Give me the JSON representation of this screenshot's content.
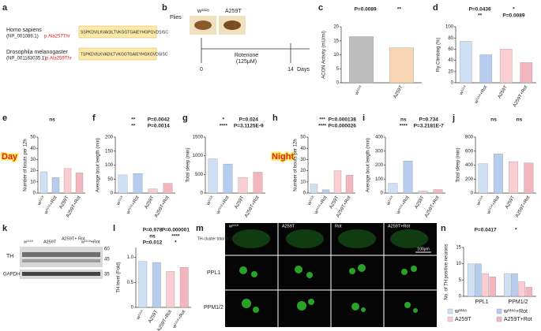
{
  "panels": {
    "a": {
      "label": "a",
      "rows": [
        {
          "species": "Homo sapiens",
          "id": "(NP_001089.1)",
          "mutation": "p.Ala257Thr",
          "sequence": "SSPKDVILKVAGILTVKGGTGAIEYHGPGVDSISC"
        },
        {
          "species": "Drosophila melanogaster",
          "id": "(NP_001163035.1)",
          "mutation": "p.Ala259Thr",
          "sequence": "TSPKDVILKVADILTVKGGTGAIEYHGKGVDSISC"
        }
      ]
    },
    "b": {
      "label": "b",
      "title": "Flies",
      "genotypes": [
        "w¹¹¹⁸",
        "A259T"
      ],
      "treatment": "Rotenone",
      "dose": "(125μM)",
      "start": "0",
      "end": "14",
      "unit": "Days"
    },
    "k": {
      "label": "k",
      "lanes": [
        "w¹¹¹⁸",
        "A259T",
        "A259T+ Rot",
        "w¹¹¹⁸+Rot"
      ],
      "proteins": [
        "TH",
        "GAPDH"
      ],
      "markers": [
        "60",
        "45",
        "35"
      ]
    },
    "m": {
      "label": "m",
      "columns": [
        "w¹¹¹⁸",
        "A259T",
        "Rot",
        "A259T+Rot"
      ],
      "rows": [
        "TH-cluster total fly brain",
        "PPL1",
        "PPM1/2"
      ],
      "scale": "100μm"
    }
  },
  "chart_data": [
    {
      "type": "bar",
      "label": "c",
      "ylabel": "ACON Activity (mU/ml)",
      "categories": [
        "w¹¹¹⁸",
        "A259T"
      ],
      "values": [
        16.5,
        12.5
      ],
      "colors": [
        "#bdbdbd",
        "#f8d6b3"
      ],
      "ylim": [
        0,
        20
      ],
      "yticks": [
        0,
        5,
        10,
        15,
        20
      ],
      "annotations": [
        "P=0.0089",
        "**"
      ]
    },
    {
      "type": "bar",
      "label": "d",
      "ylabel": "Fly Climbing (%)",
      "categories": [
        "w¹¹¹⁸",
        "w¹¹¹⁸+Rot",
        "A259T",
        "A259T+Rot"
      ],
      "values": [
        74,
        50,
        60,
        36
      ],
      "colors": [
        "#cfe0f5",
        "#b7cdef",
        "#f9cdd2",
        "#f4b6be"
      ],
      "ylim": [
        0,
        100
      ],
      "yticks": [
        0,
        20,
        40,
        60,
        80,
        100
      ],
      "annotations": [
        "P=0.0436",
        "*",
        "**",
        "P=0.0089"
      ]
    },
    {
      "type": "bar",
      "label": "e",
      "tag": "Day",
      "ylabel": "Number of bouts per 12h",
      "categories": [
        "w¹¹¹⁸",
        "w¹¹¹⁸+Rot",
        "A259T",
        "A259T+Rot"
      ],
      "values": [
        19,
        14,
        22,
        18
      ],
      "colors": [
        "#cfe0f5",
        "#b7cdef",
        "#f9cdd2",
        "#f4b6be"
      ],
      "ylim": [
        0,
        50
      ],
      "yticks": [
        0,
        10,
        20,
        30,
        40,
        50
      ],
      "annotations": [
        "ns"
      ]
    },
    {
      "type": "bar",
      "label": "f",
      "ylabel": "Average bout length (min)",
      "categories": [
        "w¹¹¹⁸",
        "w¹¹¹⁸+Rot",
        "A259T",
        "A259T+Rot"
      ],
      "values": [
        65,
        70,
        15,
        35
      ],
      "colors": [
        "#cfe0f5",
        "#b7cdef",
        "#f9cdd2",
        "#f4b6be"
      ],
      "ylim": [
        0,
        200
      ],
      "yticks": [
        0,
        50,
        100,
        150,
        200
      ],
      "annotations": [
        "**",
        "P=0.0042",
        "**",
        "P=0.0014"
      ]
    },
    {
      "type": "bar",
      "label": "g",
      "ylabel": "Total sleep (min)",
      "categories": [
        "w¹¹¹⁸",
        "w¹¹¹⁸+Rot",
        "A259T",
        "A259T+Rot"
      ],
      "values": [
        920,
        780,
        420,
        560
      ],
      "colors": [
        "#cfe0f5",
        "#b7cdef",
        "#f9cdd2",
        "#f4b6be"
      ],
      "ylim": [
        0,
        1500
      ],
      "yticks": [
        0,
        500,
        1000,
        1500
      ],
      "annotations": [
        "*",
        "P=0.024",
        "****",
        "P=3.1125E-9"
      ]
    },
    {
      "type": "bar",
      "label": "h",
      "tag": "Night",
      "ylabel": "Number of bouts per 12h",
      "categories": [
        "w¹¹¹⁸",
        "w¹¹¹⁸+Rot",
        "A259T",
        "A259T+Rot"
      ],
      "values": [
        8,
        3,
        20,
        16
      ],
      "colors": [
        "#cfe0f5",
        "#b7cdef",
        "#f9cdd2",
        "#f4b6be"
      ],
      "ylim": [
        0,
        50
      ],
      "yticks": [
        0,
        10,
        20,
        30,
        40,
        50
      ],
      "annotations": [
        "***",
        "P=0.000138",
        "****",
        "P=0.000026"
      ]
    },
    {
      "type": "bar",
      "label": "i",
      "ylabel": "Average bout length (min)",
      "categories": [
        "w¹¹¹⁸",
        "w¹¹¹⁸+Rot",
        "A259T",
        "A259T+Rot"
      ],
      "values": [
        70,
        230,
        15,
        25
      ],
      "colors": [
        "#cfe0f5",
        "#b7cdef",
        "#f9cdd2",
        "#f4b6be"
      ],
      "ylim": [
        0,
        400
      ],
      "yticks": [
        0,
        100,
        200,
        300,
        400
      ],
      "annotations": [
        "ns",
        "P=0.734",
        "****",
        "P=3.2181E-7"
      ]
    },
    {
      "type": "bar",
      "label": "j",
      "ylabel": "Total sleep (min)",
      "categories": [
        "w¹¹¹⁸",
        "w¹¹¹⁸+Rot",
        "A259T",
        "A259T+Rot"
      ],
      "values": [
        420,
        560,
        450,
        430
      ],
      "colors": [
        "#cfe0f5",
        "#b7cdef",
        "#f9cdd2",
        "#f4b6be"
      ],
      "ylim": [
        0,
        800
      ],
      "yticks": [
        0,
        200,
        400,
        600,
        800
      ],
      "annotations": [
        "ns",
        "ns"
      ]
    },
    {
      "type": "bar",
      "label": "l",
      "ylabel": "TH level (Fold)",
      "categories": [
        "w¹¹¹⁸",
        "A259T",
        "A259T+Rot",
        "w¹¹¹⁸+Rot"
      ],
      "values": [
        0.92,
        0.9,
        0.72,
        0.8
      ],
      "colors": [
        "#cfe0f5",
        "#b7cdef",
        "#f9cdd2",
        "#f4b6be"
      ],
      "ylim": [
        0,
        1.2
      ],
      "yticks": [
        0,
        0.5,
        {
          "value": 1,
          "label": "1.0"
        }
      ],
      "annotations": [
        "P=0.978",
        "P=0.000001",
        "ns",
        "****",
        "P=0.012",
        "*"
      ]
    },
    {
      "type": "grouped-bar",
      "label": "n",
      "ylabel": "No. of TH positive neurons",
      "categories": [
        "PPL1",
        "PPM1/2"
      ],
      "ylim": [
        0,
        15
      ],
      "yticks": [
        0,
        5,
        10,
        15
      ],
      "annotations": [
        "P=0.0417",
        "*"
      ],
      "series": [
        {
          "name": "w¹¹¹⁸",
          "color": "#cfe0f5",
          "values": [
            10,
            7
          ]
        },
        {
          "name": "w¹¹¹⁸+Rot",
          "color": "#b7cdef",
          "values": [
            10,
            7
          ]
        },
        {
          "name": "A259T",
          "color": "#f9cdd2",
          "values": [
            7,
            4.5
          ]
        },
        {
          "name": "A259T+Rot",
          "color": "#f4b6be",
          "values": [
            6,
            2.8
          ]
        }
      ]
    }
  ]
}
